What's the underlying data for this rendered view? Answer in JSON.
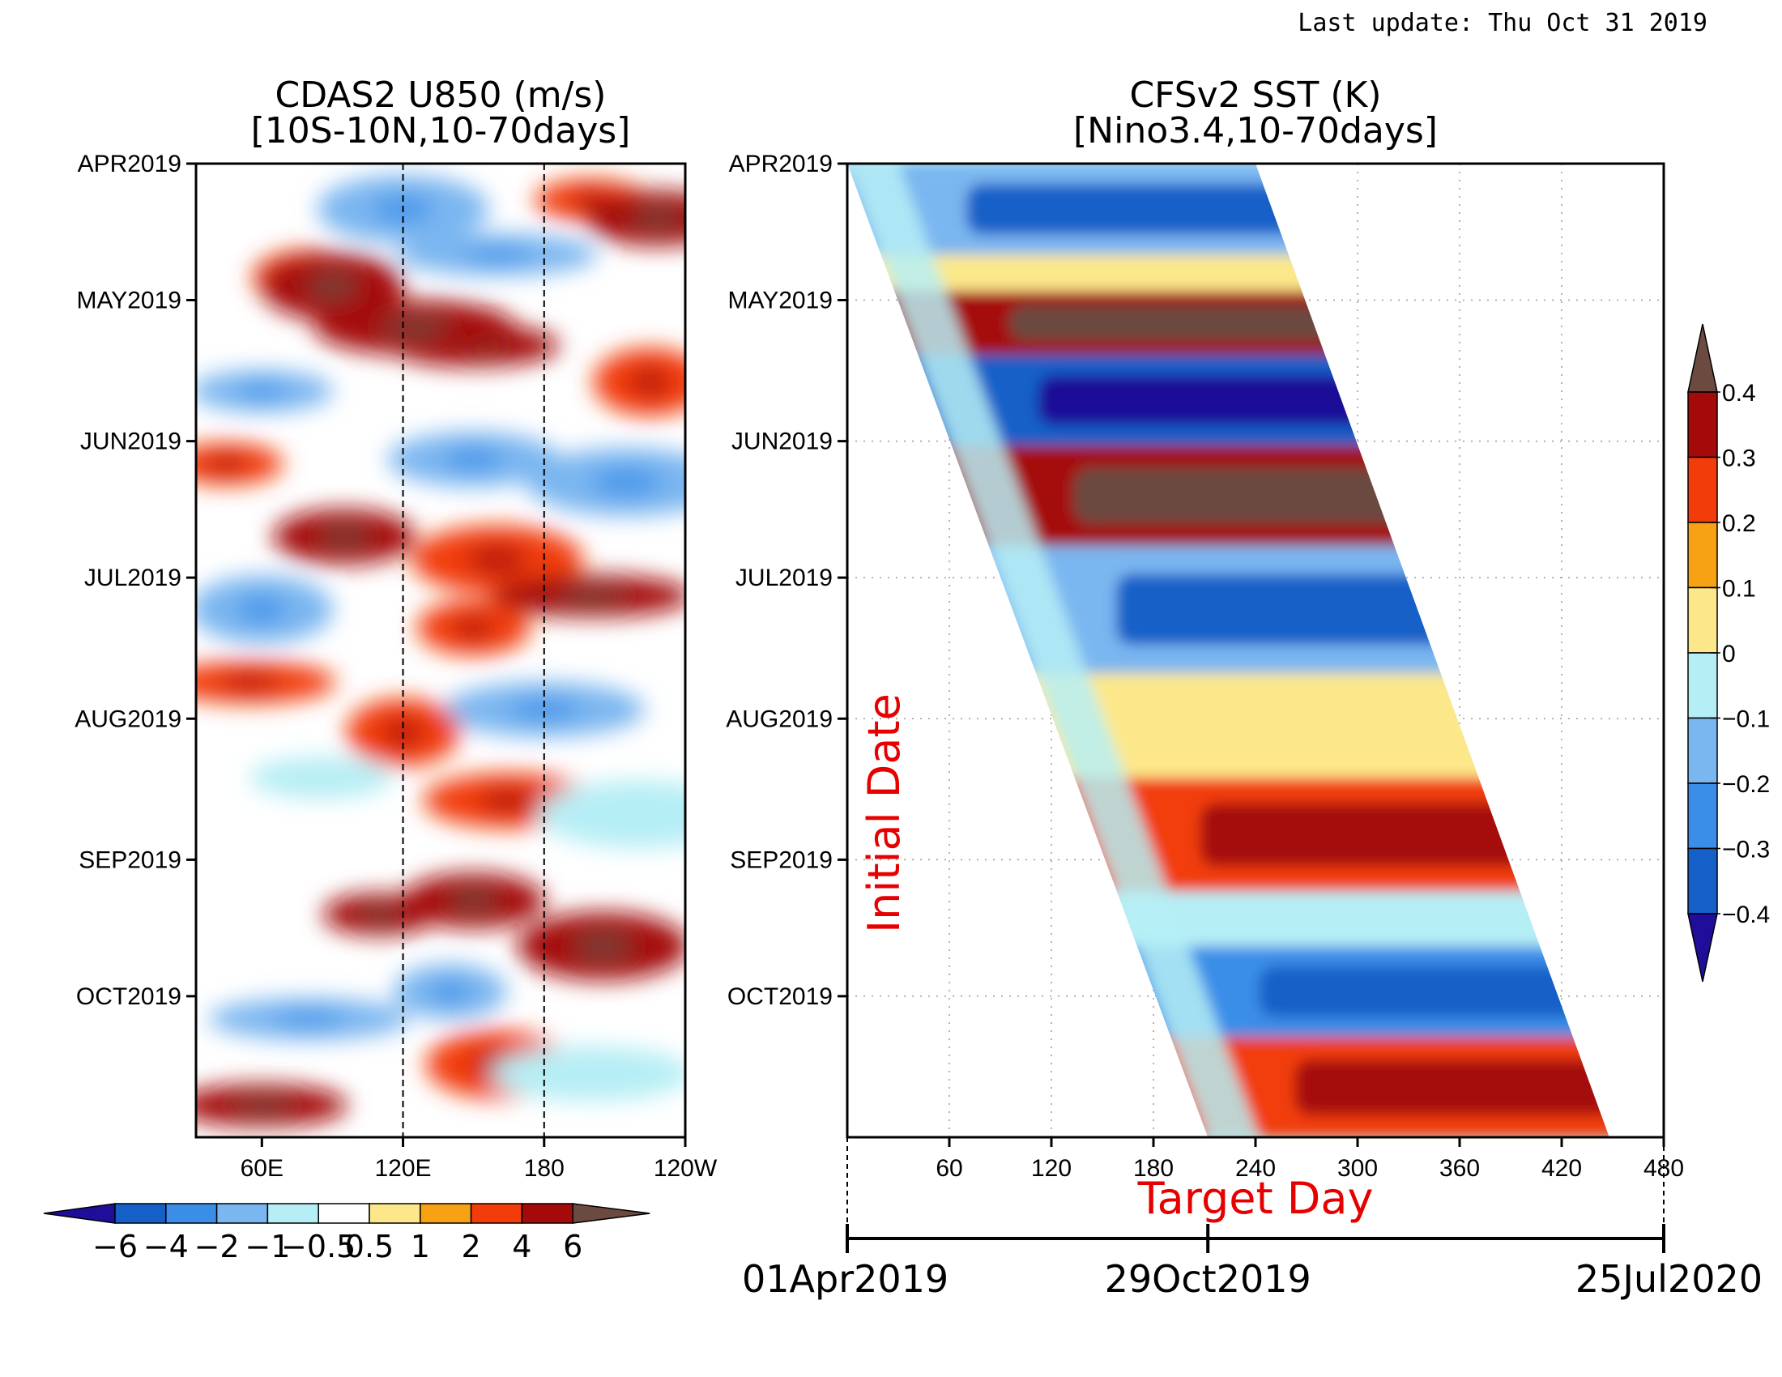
{
  "header": {
    "last_update": "Last update: Thu Oct 31 2019"
  },
  "colors": {
    "levels": [
      "#1f0e99",
      "#1560c8",
      "#3b8ee8",
      "#7ab6f0",
      "#b6eef5",
      "#ffffff",
      "#fce88a",
      "#f6a214",
      "#f23c0a",
      "#a50a0a",
      "#6b4a40"
    ],
    "sst_levels": [
      "#1f0e99",
      "#1560c8",
      "#3b8ee8",
      "#7ab6f0",
      "#b6eef5",
      "#fce88a",
      "#f6a214",
      "#f23c0a",
      "#a50a0a",
      "#6b4a40"
    ],
    "label_red": "#e60000"
  },
  "chart_data": [
    {
      "type": "heatmap",
      "title": "CDAS2 U850 (m/s)",
      "subtitle": "[10S-10N,10-70days]",
      "x_tick_labels": [
        "60E",
        "120E",
        "180",
        "120W"
      ],
      "x_ticks_deg": [
        60,
        120,
        180,
        240
      ],
      "xlim_deg": [
        32,
        240
      ],
      "y_tick_labels": [
        "APR2019",
        "MAY2019",
        "JUN2019",
        "JUL2019",
        "AUG2019",
        "SEP2019",
        "OCT2019"
      ],
      "ylim_days": [
        0,
        214
      ],
      "reference_lines_deg": [
        120,
        180
      ],
      "colorbar": {
        "orientation": "horizontal",
        "levels": [
          -6,
          -4,
          -2,
          -1,
          -0.5,
          0.5,
          1,
          2,
          4,
          6
        ],
        "tick_labels": [
          "−6",
          "−4",
          "−2",
          "−1",
          "−0.5",
          "0.5",
          "1",
          "2",
          "4",
          "6"
        ]
      },
      "anomaly_blobs": [
        {
          "lon": 200,
          "day": 8,
          "value": 2
        },
        {
          "lon": 228,
          "day": 12,
          "value": 4
        },
        {
          "lon": 120,
          "day": 10,
          "value": -2
        },
        {
          "lon": 160,
          "day": 20,
          "value": -2
        },
        {
          "lon": 80,
          "day": 25,
          "value": 2
        },
        {
          "lon": 90,
          "day": 27,
          "value": 4
        },
        {
          "lon": 150,
          "day": 40,
          "value": 4
        },
        {
          "lon": 125,
          "day": 36,
          "value": 4
        },
        {
          "lon": 225,
          "day": 48,
          "value": 2
        },
        {
          "lon": 60,
          "day": 50,
          "value": -2
        },
        {
          "lon": 150,
          "day": 65,
          "value": -2
        },
        {
          "lon": 215,
          "day": 70,
          "value": -2
        },
        {
          "lon": 45,
          "day": 66,
          "value": 2
        },
        {
          "lon": 95,
          "day": 82,
          "value": 4
        },
        {
          "lon": 160,
          "day": 87,
          "value": 2
        },
        {
          "lon": 200,
          "day": 95,
          "value": 4
        },
        {
          "lon": 150,
          "day": 102,
          "value": 2
        },
        {
          "lon": 60,
          "day": 98,
          "value": -2
        },
        {
          "lon": 55,
          "day": 114,
          "value": 2
        },
        {
          "lon": 180,
          "day": 120,
          "value": -2
        },
        {
          "lon": 120,
          "day": 125,
          "value": 2
        },
        {
          "lon": 85,
          "day": 135,
          "value": -1
        },
        {
          "lon": 165,
          "day": 140,
          "value": 2
        },
        {
          "lon": 220,
          "day": 143,
          "value": -1
        },
        {
          "lon": 110,
          "day": 165,
          "value": 4
        },
        {
          "lon": 150,
          "day": 162,
          "value": 4
        },
        {
          "lon": 205,
          "day": 172,
          "value": 4
        },
        {
          "lon": 80,
          "day": 188,
          "value": -2
        },
        {
          "lon": 140,
          "day": 182,
          "value": -2
        },
        {
          "lon": 160,
          "day": 198,
          "value": 2
        },
        {
          "lon": 60,
          "day": 207,
          "value": 4
        },
        {
          "lon": 200,
          "day": 200,
          "value": -1
        }
      ]
    },
    {
      "type": "heatmap",
      "title": "CFSv2 SST (K)",
      "subtitle": "[Nino3.4,10-70days]",
      "x_tick_labels": [
        "60",
        "120",
        "180",
        "240",
        "300",
        "360",
        "420",
        "480"
      ],
      "x_ticks": [
        60,
        120,
        180,
        240,
        300,
        360,
        420,
        480
      ],
      "xlim": [
        0,
        480
      ],
      "xlabel": "Target Day",
      "ylabel": "Initial Date",
      "y_tick_labels": [
        "APR2019",
        "MAY2019",
        "JUN2019",
        "JUL2019",
        "AUG2019",
        "SEP2019",
        "OCT2019"
      ],
      "ylim_days": [
        0,
        214
      ],
      "forecast_valid_region": {
        "top_start_day": 0,
        "top_end_day": 240,
        "bottom_start_day": 212,
        "bottom_end_day": 448
      },
      "timeline": {
        "labels": [
          "01Apr2019",
          "29Oct2019",
          "25Jul2020"
        ],
        "positions_day": [
          0,
          212,
          480
        ]
      },
      "colorbar": {
        "orientation": "vertical",
        "levels": [
          -0.4,
          -0.3,
          -0.2,
          -0.1,
          0,
          0.1,
          0.2,
          0.3,
          0.4
        ],
        "tick_labels": [
          "−0.4",
          "−0.3",
          "−0.2",
          "−0.1",
          "0",
          "0.1",
          "0.2",
          "0.3",
          "0.4"
        ]
      },
      "bands": [
        {
          "day_start": 0,
          "day_end": 20,
          "value": -0.2
        },
        {
          "day_start": 20,
          "day_end": 28,
          "value": 0.05
        },
        {
          "day_start": 28,
          "day_end": 42,
          "value": 0.35
        },
        {
          "day_start": 42,
          "day_end": 62,
          "value": -0.35
        },
        {
          "day_start": 62,
          "day_end": 84,
          "value": 0.35
        },
        {
          "day_start": 84,
          "day_end": 112,
          "value": -0.2
        },
        {
          "day_start": 112,
          "day_end": 135,
          "value": 0.05
        },
        {
          "day_start": 135,
          "day_end": 160,
          "value": 0.2
        },
        {
          "day_start": 160,
          "day_end": 172,
          "value": -0.1
        },
        {
          "day_start": 172,
          "day_end": 192,
          "value": -0.3
        },
        {
          "day_start": 192,
          "day_end": 214,
          "value": 0.2
        }
      ]
    }
  ]
}
